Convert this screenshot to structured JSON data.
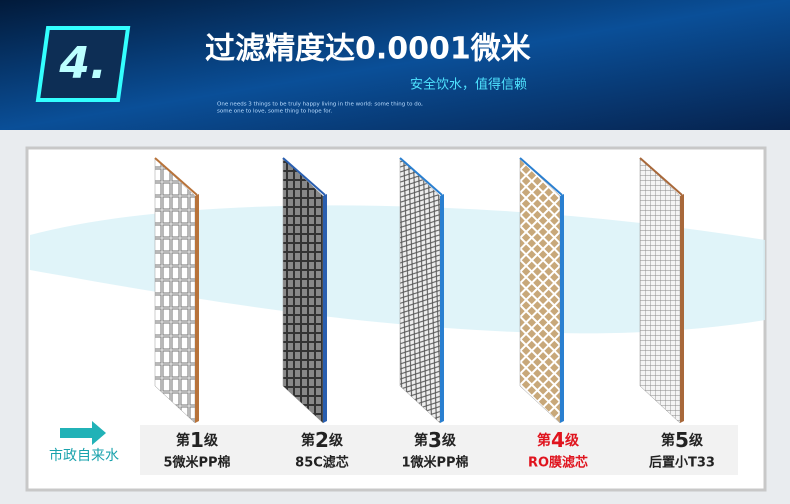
{
  "header": {
    "badge": "4.",
    "title": "过滤精度达0.0001微米",
    "subtitle": "安全饮水，值得信赖",
    "quote_line1": "One needs 3 things to be truly happy living in the world: some thing to do,",
    "quote_line2": "some one to love, some thing to hope for."
  },
  "source_label": "市政自来水",
  "stages": [
    {
      "prefix": "第",
      "number": "1",
      "suffix": "级",
      "name": "5微米PP棉"
    },
    {
      "prefix": "第",
      "number": "2",
      "suffix": "级",
      "name": "85C滤芯"
    },
    {
      "prefix": "第",
      "number": "3",
      "suffix": "级",
      "name": "1微米PP棉"
    },
    {
      "prefix": "第",
      "number": "4",
      "suffix": "级",
      "name": "RO膜滤芯"
    },
    {
      "prefix": "第",
      "number": "5",
      "suffix": "级",
      "name": "后置小T33"
    }
  ]
}
